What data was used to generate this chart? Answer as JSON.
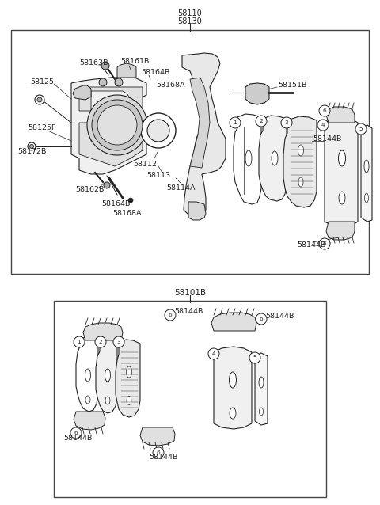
{
  "bg_color": "#ffffff",
  "border_color": "#444444",
  "line_color": "#222222",
  "text_color": "#222222",
  "fig_width": 4.8,
  "fig_height": 6.38,
  "dpi": 100,
  "top_label1": "58110",
  "top_label2": "58130",
  "label_bottom_box": "58101B",
  "fs_label": 6.8,
  "fs_num": 5.8
}
